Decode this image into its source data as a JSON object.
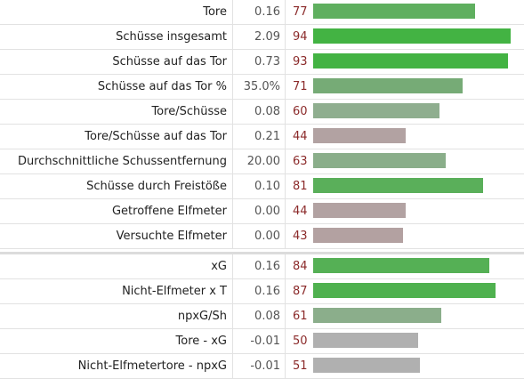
{
  "colors": {
    "strong_green": "#4caf50",
    "mid_green": "#6fb26f",
    "pale_green": "#8fae8f",
    "mauve": "#b3a0a0",
    "gray": "#b0b0b0",
    "pct_high": "#7a1f1f",
    "pct_normal": "#8b2a2a"
  },
  "group1": [
    {
      "label": "Tore",
      "value": "0.16",
      "percentile": "77",
      "pct_num": 77,
      "color": "#5faf5f"
    },
    {
      "label": "Schüsse insgesamt",
      "value": "2.09",
      "percentile": "94",
      "pct_num": 94,
      "color": "#43b343"
    },
    {
      "label": "Schüsse auf das Tor",
      "value": "0.73",
      "percentile": "93",
      "pct_num": 93,
      "color": "#43b343"
    },
    {
      "label": "Schüsse auf das Tor %",
      "value": "35.0%",
      "percentile": "71",
      "pct_num": 71,
      "color": "#76ab76"
    },
    {
      "label": "Tore/Schüsse",
      "value": "0.08",
      "percentile": "60",
      "pct_num": 60,
      "color": "#8fae8f"
    },
    {
      "label": "Tore/Schüsse auf das Tor",
      "value": "0.21",
      "percentile": "44",
      "pct_num": 44,
      "color": "#b2a2a2"
    },
    {
      "label": "Durchschnittliche Schussentfernung",
      "value": "20.00",
      "percentile": "63",
      "pct_num": 63,
      "color": "#8aae8a"
    },
    {
      "label": "Schüsse durch Freistöße",
      "value": "0.10",
      "percentile": "81",
      "pct_num": 81,
      "color": "#5aaf5a"
    },
    {
      "label": "Getroffene Elfmeter",
      "value": "0.00",
      "percentile": "44",
      "pct_num": 44,
      "color": "#b2a2a2"
    },
    {
      "label": "Versuchte Elfmeter",
      "value": "0.00",
      "percentile": "43",
      "pct_num": 43,
      "color": "#b3a1a1"
    }
  ],
  "group2": [
    {
      "label": "xG",
      "value": "0.16",
      "percentile": "84",
      "pct_num": 84,
      "color": "#55b055"
    },
    {
      "label": "Nicht-Elfmeter x T",
      "value": "0.16",
      "percentile": "87",
      "pct_num": 87,
      "color": "#4fb14f"
    },
    {
      "label": "npxG/Sh",
      "value": "0.08",
      "percentile": "61",
      "pct_num": 61,
      "color": "#8bae8b"
    },
    {
      "label": "Tore - xG",
      "value": "-0.01",
      "percentile": "50",
      "pct_num": 50,
      "color": "#b0b0b0"
    },
    {
      "label": "Nicht-Elfmetertore - npxG",
      "value": "-0.01",
      "percentile": "51",
      "pct_num": 51,
      "color": "#b0b0b0"
    }
  ]
}
